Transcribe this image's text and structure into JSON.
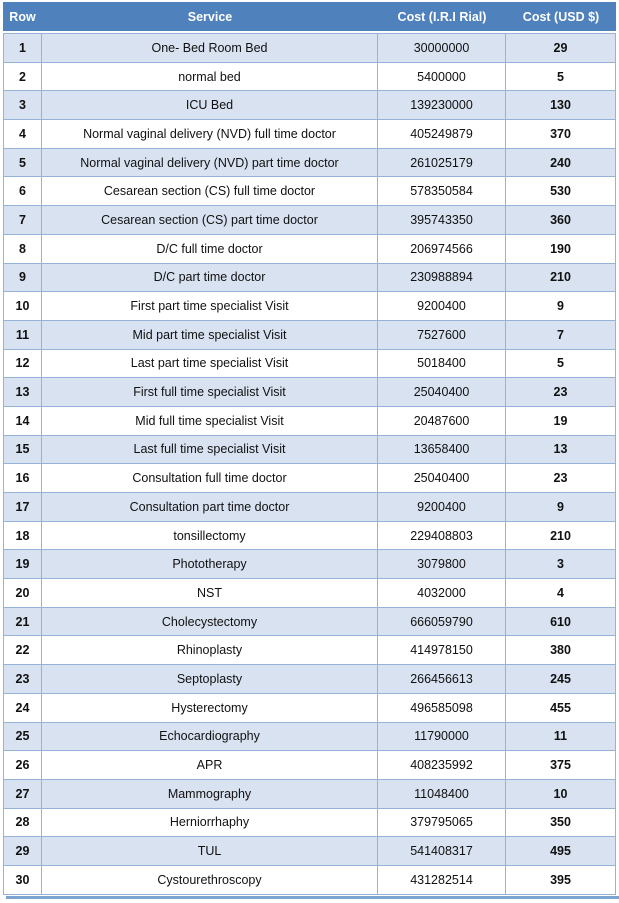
{
  "table": {
    "headers": [
      "Row",
      "Service",
      "Cost (I.R.I Rial)",
      "Cost (USD $)"
    ],
    "rows": [
      {
        "row": "1",
        "service": "One- Bed Room Bed",
        "rial": "30000000",
        "usd": "29"
      },
      {
        "row": "2",
        "service": "normal bed",
        "rial": "5400000",
        "usd": "5"
      },
      {
        "row": "3",
        "service": "ICU Bed",
        "rial": "139230000",
        "usd": "130"
      },
      {
        "row": "4",
        "service": "Normal vaginal delivery (NVD) full time doctor",
        "rial": "405249879",
        "usd": "370"
      },
      {
        "row": "5",
        "service": "Normal vaginal delivery (NVD) part time doctor",
        "rial": "261025179",
        "usd": "240"
      },
      {
        "row": "6",
        "service": "Cesarean section (CS) full time doctor",
        "rial": "578350584",
        "usd": "530"
      },
      {
        "row": "7",
        "service": "Cesarean section (CS) part time doctor",
        "rial": "395743350",
        "usd": "360"
      },
      {
        "row": "8",
        "service": "D/C  full time doctor",
        "rial": "206974566",
        "usd": "190"
      },
      {
        "row": "9",
        "service": "D/C  part  time doctor",
        "rial": "230988894",
        "usd": "210"
      },
      {
        "row": "10",
        "service": "First part  time specialist Visit",
        "rial": "9200400",
        "usd": "9"
      },
      {
        "row": "11",
        "service": "Mid part  time  specialist Visit",
        "rial": "7527600",
        "usd": "7"
      },
      {
        "row": "12",
        "service": "Last part  time specialist Visit",
        "rial": "5018400",
        "usd": "5"
      },
      {
        "row": "13",
        "service": "First full  time specialist Visit",
        "rial": "25040400",
        "usd": "23"
      },
      {
        "row": "14",
        "service": "Mid full  time  specialist Visit",
        "rial": "20487600",
        "usd": "19"
      },
      {
        "row": "15",
        "service": "Last full  time specialist Visit",
        "rial": "13658400",
        "usd": "13"
      },
      {
        "row": "16",
        "service": "Consultation full time doctor",
        "rial": "25040400",
        "usd": "23"
      },
      {
        "row": "17",
        "service": "Consultation part  time doctor",
        "rial": "9200400",
        "usd": "9"
      },
      {
        "row": "18",
        "service": "tonsillectomy",
        "rial": "229408803",
        "usd": "210"
      },
      {
        "row": "19",
        "service": "Phototherapy",
        "rial": "3079800",
        "usd": "3"
      },
      {
        "row": "20",
        "service": "NST",
        "rial": "4032000",
        "usd": "4"
      },
      {
        "row": "21",
        "service": "Cholecystectomy",
        "rial": "666059790",
        "usd": "610"
      },
      {
        "row": "22",
        "service": "Rhinoplasty",
        "rial": "414978150",
        "usd": "380"
      },
      {
        "row": "23",
        "service": "Septoplasty",
        "rial": "266456613",
        "usd": "245"
      },
      {
        "row": "24",
        "service": "Hysterectomy",
        "rial": "496585098",
        "usd": "455"
      },
      {
        "row": "25",
        "service": "Echocardiography",
        "rial": "11790000",
        "usd": "11"
      },
      {
        "row": "26",
        "service": "APR",
        "rial": "408235992",
        "usd": "375"
      },
      {
        "row": "27",
        "service": "Mammography",
        "rial": "11048400",
        "usd": "10"
      },
      {
        "row": "28",
        "service": "Herniorrhaphy",
        "rial": "379795065",
        "usd": "350"
      },
      {
        "row": "29",
        "service": "TUL",
        "rial": "541408317",
        "usd": "495"
      },
      {
        "row": "30",
        "service": "Cystourethroscopy",
        "rial": "431282514",
        "usd": "395"
      }
    ]
  },
  "colors": {
    "header_bg": "#4f81bd",
    "header_text": "#ffffff",
    "row_alt_bg": "#d9e2f1",
    "border": "#95b3d7",
    "bottom_bar": "#7da3d0"
  }
}
